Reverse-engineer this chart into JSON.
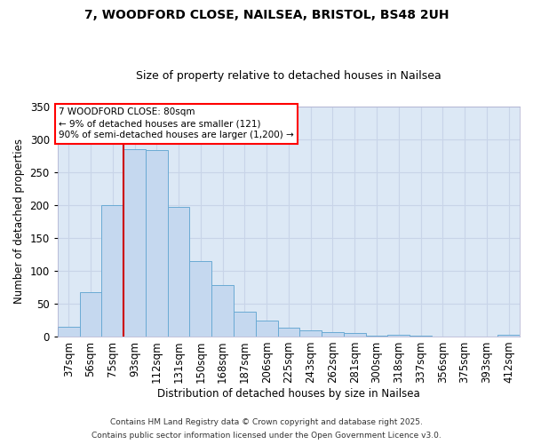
{
  "title_line1": "7, WOODFORD CLOSE, NAILSEA, BRISTOL, BS48 2UH",
  "title_line2": "Size of property relative to detached houses in Nailsea",
  "xlabel": "Distribution of detached houses by size in Nailsea",
  "ylabel": "Number of detached properties",
  "categories": [
    "37sqm",
    "56sqm",
    "75sqm",
    "93sqm",
    "112sqm",
    "131sqm",
    "150sqm",
    "168sqm",
    "187sqm",
    "206sqm",
    "225sqm",
    "243sqm",
    "262sqm",
    "281sqm",
    "300sqm",
    "318sqm",
    "337sqm",
    "356sqm",
    "375sqm",
    "393sqm",
    "412sqm"
  ],
  "bar_values": [
    15,
    67,
    200,
    285,
    283,
    197,
    115,
    78,
    38,
    24,
    13,
    9,
    7,
    5,
    1,
    2,
    1,
    0,
    0,
    0,
    2
  ],
  "bar_color": "#c5d8ef",
  "bar_edgecolor": "#6aaad4",
  "grid_color": "#c8d4e8",
  "background_color": "#dce8f5",
  "vline_color": "#cc0000",
  "annotation_title": "7 WOODFORD CLOSE: 80sqm",
  "annotation_line1": "← 9% of detached houses are smaller (121)",
  "annotation_line2": "90% of semi-detached houses are larger (1,200) →",
  "ylim": [
    0,
    350
  ],
  "yticks": [
    0,
    50,
    100,
    150,
    200,
    250,
    300,
    350
  ],
  "footer1": "Contains HM Land Registry data © Crown copyright and database right 2025.",
  "footer2": "Contains public sector information licensed under the Open Government Licence v3.0."
}
